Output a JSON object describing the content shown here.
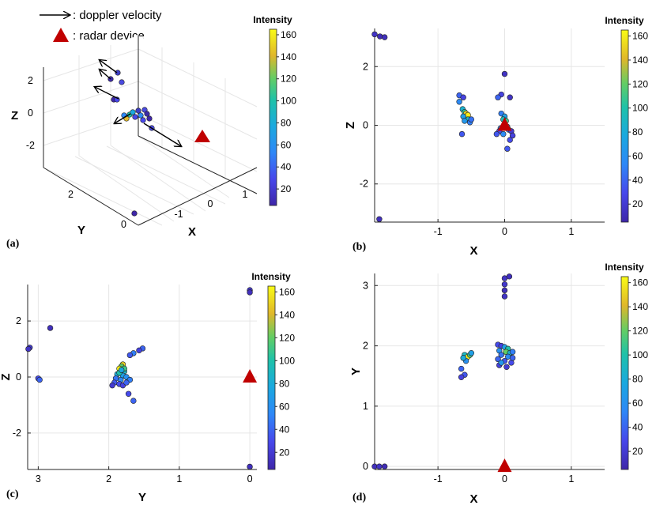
{
  "figure": {
    "legend": {
      "velocity_label": ": doppler velocity",
      "radar_label": ": radar device"
    },
    "colorbar_title": "Intensity",
    "colorbar_ticks": [
      "20",
      "40",
      "60",
      "80",
      "100",
      "120",
      "140",
      "160"
    ],
    "colors": {
      "radar": "#c00000",
      "grid": "#e6e6e6",
      "axis": "#262626"
    }
  },
  "chart_data": [
    {
      "panel": "(a)",
      "type": "scatter",
      "view": "3d",
      "xlabel": "X",
      "ylabel": "Y",
      "zlabel": "Z",
      "xticks": [
        "-1",
        "0",
        "1"
      ],
      "yticks": [
        "0",
        "2"
      ],
      "zticks": [
        "-2",
        "0",
        "2"
      ],
      "colorbar": {
        "label": "Intensity",
        "range": [
          5,
          165
        ]
      },
      "radar_device": {
        "x": 0,
        "y": 0,
        "z": 0
      },
      "velocity_arrows": 5
    },
    {
      "panel": "(b)",
      "type": "scatter",
      "xlabel": "X",
      "ylabel": "Z",
      "xlim": [
        -1.95,
        1.5
      ],
      "ylim": [
        -3.3,
        3.3
      ],
      "xticks": [
        -1,
        0,
        1
      ],
      "yticks": [
        -2,
        0,
        2
      ],
      "tick_labels_x": [
        "-1",
        "0",
        "1"
      ],
      "tick_labels_y": [
        "-2",
        "0",
        "2"
      ],
      "radar_device": [
        0,
        0
      ],
      "points": [
        [
          -1.95,
          3.1,
          15
        ],
        [
          -1.87,
          3.03,
          10
        ],
        [
          -1.8,
          3.0,
          12
        ],
        [
          -1.88,
          -3.2,
          12
        ],
        [
          -0.68,
          1.02,
          40
        ],
        [
          -0.62,
          0.95,
          25
        ],
        [
          -0.68,
          0.8,
          55
        ],
        [
          -0.63,
          0.55,
          85
        ],
        [
          -0.6,
          0.45,
          105
        ],
        [
          -0.58,
          0.4,
          150
        ],
        [
          -0.55,
          0.35,
          160
        ],
        [
          -0.62,
          0.3,
          70
        ],
        [
          -0.55,
          0.2,
          90
        ],
        [
          -0.6,
          0.15,
          65
        ],
        [
          -0.52,
          0.1,
          50
        ],
        [
          -0.5,
          0.2,
          45
        ],
        [
          -0.64,
          -0.3,
          35
        ],
        [
          0.0,
          1.75,
          15
        ],
        [
          -0.05,
          1.05,
          25
        ],
        [
          0.08,
          0.95,
          15
        ],
        [
          -0.1,
          0.95,
          40
        ],
        [
          -0.05,
          0.4,
          50
        ],
        [
          0.0,
          0.3,
          70
        ],
        [
          -0.02,
          0.2,
          95
        ],
        [
          0.02,
          0.15,
          110
        ],
        [
          0.0,
          0.05,
          140
        ],
        [
          0.04,
          -0.05,
          80
        ],
        [
          -0.06,
          -0.1,
          60
        ],
        [
          0.06,
          -0.15,
          45
        ],
        [
          -0.08,
          -0.2,
          30
        ],
        [
          0.1,
          -0.2,
          20
        ],
        [
          0.12,
          -0.35,
          25
        ],
        [
          -0.12,
          -0.3,
          35
        ],
        [
          -0.02,
          -0.3,
          55
        ],
        [
          0.08,
          -0.5,
          30
        ],
        [
          0.04,
          -0.8,
          35
        ]
      ]
    },
    {
      "panel": "(c)",
      "type": "scatter",
      "xlabel": "Y",
      "ylabel": "Z",
      "xlim": [
        3.15,
        -0.1
      ],
      "ylim": [
        -3.3,
        3.3
      ],
      "xticks": [
        3,
        2,
        1,
        0
      ],
      "yticks": [
        -2,
        0,
        2
      ],
      "tick_labels_x": [
        "3",
        "2",
        "1",
        "0"
      ],
      "tick_labels_y": [
        "-2",
        "0",
        "2"
      ],
      "radar_device": [
        0,
        0
      ],
      "points": [
        [
          3.12,
          1.05,
          20
        ],
        [
          3.14,
          1.0,
          15
        ],
        [
          2.83,
          1.75,
          12
        ],
        [
          3.0,
          -0.05,
          30
        ],
        [
          2.98,
          -0.1,
          40
        ],
        [
          0.0,
          3.1,
          15
        ],
        [
          0.0,
          3.02,
          12
        ],
        [
          0.0,
          -3.2,
          12
        ],
        [
          1.52,
          1.02,
          40
        ],
        [
          1.57,
          0.95,
          25
        ],
        [
          1.65,
          0.85,
          50
        ],
        [
          1.7,
          0.78,
          35
        ],
        [
          1.8,
          0.45,
          150
        ],
        [
          1.82,
          0.38,
          120
        ],
        [
          1.85,
          0.3,
          160
        ],
        [
          1.78,
          0.2,
          90
        ],
        [
          1.88,
          0.1,
          80
        ],
        [
          1.8,
          0.05,
          70
        ],
        [
          1.75,
          0.0,
          60
        ],
        [
          1.9,
          -0.05,
          45
        ],
        [
          1.83,
          -0.1,
          55
        ],
        [
          1.7,
          -0.1,
          50
        ],
        [
          1.92,
          -0.2,
          35
        ],
        [
          1.85,
          -0.25,
          30
        ],
        [
          1.8,
          -0.3,
          25
        ],
        [
          1.95,
          -0.3,
          20
        ],
        [
          1.75,
          -0.2,
          40
        ],
        [
          1.85,
          0.15,
          100
        ],
        [
          1.78,
          0.3,
          110
        ],
        [
          1.82,
          0.25,
          75
        ],
        [
          1.72,
          -0.6,
          30
        ],
        [
          1.65,
          -0.85,
          40
        ]
      ]
    },
    {
      "panel": "(d)",
      "type": "scatter",
      "xlabel": "X",
      "ylabel": "Y",
      "xlim": [
        -1.95,
        1.5
      ],
      "ylim": [
        -0.05,
        3.2
      ],
      "xticks": [
        -1,
        0,
        1
      ],
      "yticks": [
        0,
        1,
        2,
        3
      ],
      "tick_labels_x": [
        "-1",
        "0",
        "1"
      ],
      "tick_labels_y": [
        "0",
        "1",
        "2",
        "3"
      ],
      "radar_device": [
        0,
        0
      ],
      "points": [
        [
          -1.95,
          0.0,
          12
        ],
        [
          -1.88,
          0.0,
          15
        ],
        [
          -1.8,
          0.0,
          10
        ],
        [
          0.0,
          3.12,
          15
        ],
        [
          0.07,
          3.15,
          12
        ],
        [
          0.0,
          3.02,
          18
        ],
        [
          0.0,
          2.92,
          12
        ],
        [
          0.0,
          2.82,
          15
        ],
        [
          -0.65,
          1.62,
          40
        ],
        [
          -0.6,
          1.52,
          35
        ],
        [
          -0.65,
          1.48,
          25
        ],
        [
          -0.6,
          1.85,
          90
        ],
        [
          -0.55,
          1.82,
          160
        ],
        [
          -0.52,
          1.85,
          110
        ],
        [
          -0.5,
          1.88,
          70
        ],
        [
          -0.58,
          1.75,
          60
        ],
        [
          -0.62,
          1.8,
          80
        ],
        [
          -0.1,
          2.02,
          30
        ],
        [
          -0.05,
          2.0,
          25
        ],
        [
          0.0,
          1.98,
          70
        ],
        [
          0.05,
          1.95,
          100
        ],
        [
          -0.08,
          1.92,
          60
        ],
        [
          0.02,
          1.9,
          120
        ],
        [
          0.08,
          1.88,
          85
        ],
        [
          0.12,
          1.9,
          50
        ],
        [
          -0.05,
          1.85,
          45
        ],
        [
          0.05,
          1.82,
          55
        ],
        [
          -0.1,
          1.78,
          40
        ],
        [
          0.0,
          1.75,
          35
        ],
        [
          0.1,
          1.72,
          30
        ],
        [
          -0.08,
          1.68,
          25
        ],
        [
          0.03,
          1.65,
          20
        ],
        [
          0.12,
          1.8,
          40
        ],
        [
          -0.05,
          1.72,
          65
        ]
      ]
    }
  ]
}
